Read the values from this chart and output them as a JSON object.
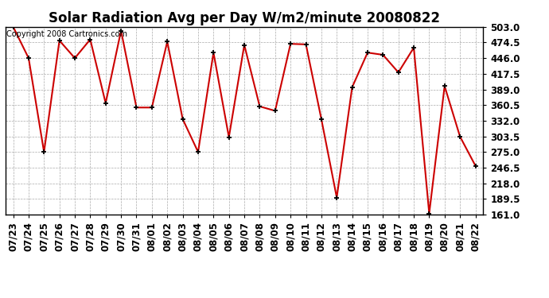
{
  "title": "Solar Radiation Avg per Day W/m2/minute 20080822",
  "copyright": "Copyright 2008 Cartronics.com",
  "dates": [
    "07/23",
    "07/24",
    "07/25",
    "07/26",
    "07/27",
    "07/28",
    "07/29",
    "07/30",
    "07/31",
    "08/01",
    "08/02",
    "08/03",
    "08/04",
    "08/05",
    "08/06",
    "08/07",
    "08/08",
    "08/09",
    "08/10",
    "08/11",
    "08/12",
    "08/13",
    "08/14",
    "08/15",
    "08/16",
    "08/17",
    "08/18",
    "08/19",
    "08/20",
    "08/21",
    "08/22"
  ],
  "values": [
    503.0,
    446.0,
    275.0,
    478.0,
    446.0,
    480.0,
    364.0,
    496.0,
    356.0,
    356.0,
    476.0,
    335.0,
    275.0,
    456.0,
    302.0,
    470.0,
    358.0,
    350.0,
    472.0,
    471.0,
    335.0,
    192.0,
    393.0,
    456.0,
    452.0,
    420.0,
    465.0,
    163.0,
    395.0,
    303.0,
    250.0
  ],
  "ylim_min": 161.0,
  "ylim_max": 503.0,
  "yticks": [
    161.0,
    189.5,
    218.0,
    246.5,
    275.0,
    303.5,
    332.0,
    360.5,
    389.0,
    417.5,
    446.0,
    474.5,
    503.0
  ],
  "line_color": "#cc0000",
  "marker_color": "#000000",
  "bg_color": "#ffffff",
  "grid_color": "#aaaaaa",
  "title_fontsize": 12,
  "tick_fontsize": 8.5,
  "copyright_fontsize": 7
}
